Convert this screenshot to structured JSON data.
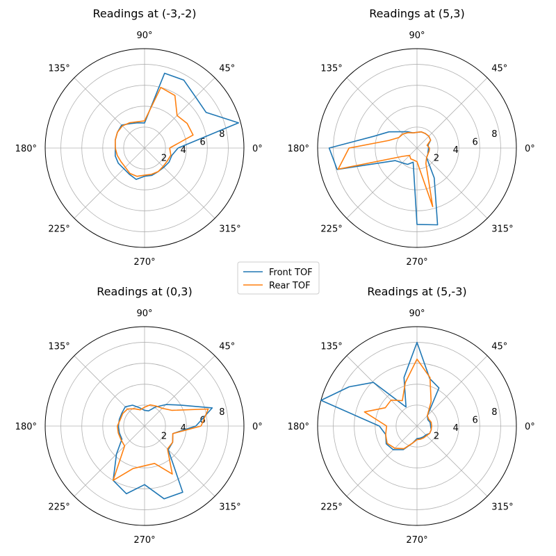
{
  "chart_data": {
    "type": "polar-line",
    "theta_deg": [
      0,
      15,
      30,
      45,
      60,
      75,
      90,
      105,
      120,
      135,
      150,
      165,
      180,
      195,
      210,
      225,
      240,
      255,
      270,
      285,
      300,
      315,
      330,
      345
    ],
    "angle_labels": [
      "0°",
      "45°",
      "90°",
      "135°",
      "180°",
      "225°",
      "270°",
      "315°"
    ],
    "radial_ticks": [
      2,
      4,
      6,
      8
    ],
    "rlim": [
      0,
      9.5
    ],
    "legend": {
      "placement": "center",
      "entries": [
        "Front TOF",
        "Rear TOF"
      ]
    },
    "series_colors": {
      "Front TOF": "#1f77b4",
      "Rear TOF": "#ff7f0e"
    },
    "subplots": [
      {
        "title": "Readings at (-3,-2)",
        "series": [
          {
            "name": "Front TOF",
            "values": [
              3.2,
              9.3,
              6.8,
              6.9,
              7.5,
              7.4,
              2.4,
              2.5,
              2.7,
              3.1,
              3.0,
              2.9,
              2.8,
              2.9,
              2.9,
              2.8,
              2.9,
              3.1,
              2.7,
              2.7,
              2.6,
              2.6,
              2.7,
              2.7
            ]
          },
          {
            "name": "Rear TOF",
            "values": [
              2.4,
              4.8,
              4.7,
              4.4,
              5.8,
              6.0,
              2.6,
              2.6,
              2.8,
              3.0,
              3.0,
              2.9,
              2.8,
              2.7,
              2.6,
              2.6,
              2.8,
              2.8,
              2.6,
              2.6,
              2.6,
              2.5,
              2.5,
              2.6
            ]
          }
        ]
      },
      {
        "title": "Readings at (5,3)",
        "series": [
          {
            "name": "Front TOF",
            "values": [
              1.1,
              1.1,
              1.5,
              1.6,
              1.6,
              1.6,
              1.5,
              1.5,
              1.8,
              2.2,
              3.1,
              4.3,
              8.4,
              7.9,
              2.4,
              2.0,
              1.8,
              1.4,
              7.3,
              7.6,
              3.3,
              1.3,
              1.2,
              1.1
            ]
          },
          {
            "name": "Rear TOF",
            "values": [
              1.2,
              1.0,
              1.5,
              1.6,
              1.6,
              1.6,
              1.5,
              1.5,
              1.7,
              1.9,
              2.0,
              2.8,
              6.5,
              7.8,
              1.6,
              1.0,
              1.2,
              1.2,
              1.3,
              5.8,
              1.7,
              1.3,
              1.2,
              1.2
            ]
          }
        ]
      },
      {
        "title": "Readings at (0,3)",
        "series": [
          {
            "name": "Front TOF",
            "values": [
              4.9,
              6.7,
              4.0,
              2.9,
              2.1,
              1.5,
              1.5,
              1.8,
              2.3,
              2.6,
              2.5,
              2.5,
              2.5,
              2.5,
              2.5,
              3.8,
              6.0,
              6.7,
              5.6,
              7.2,
              7.3,
              3.2,
              3.1,
              2.8
            ]
          },
          {
            "name": "Rear TOF",
            "values": [
              5.4,
              6.3,
              3.0,
              2.4,
              2.2,
              2.1,
              1.8,
              1.6,
              1.9,
              2.3,
              2.4,
              2.4,
              2.6,
              2.6,
              2.6,
              2.7,
              6.0,
              4.2,
              3.8,
              3.7,
              5.3,
              3.1,
              3.1,
              2.8
            ]
          }
        ]
      },
      {
        "title": "Readings at (5,-3)",
        "series": [
          {
            "name": "Front TOF",
            "values": [
              1.3,
              1.3,
              1.2,
              1.4,
              4.2,
              4.7,
              8.0,
              4.8,
              2.1,
              5.9,
              7.5,
              9.5,
              3.6,
              3.1,
              3.4,
              3.2,
              2.6,
              1.7,
              1.2,
              1.2,
              1.2,
              1.2,
              1.4,
              1.4
            ]
          },
          {
            "name": "Rear TOF",
            "values": [
              1.4,
              1.4,
              1.3,
              1.4,
              2.7,
              4.8,
              6.4,
              4.3,
              2.8,
              3.5,
              3.5,
              5.2,
              2.9,
              3.1,
              3.3,
              3.0,
              2.5,
              1.7,
              1.3,
              1.3,
              1.3,
              1.3,
              1.4,
              1.4
            ]
          }
        ]
      }
    ]
  }
}
